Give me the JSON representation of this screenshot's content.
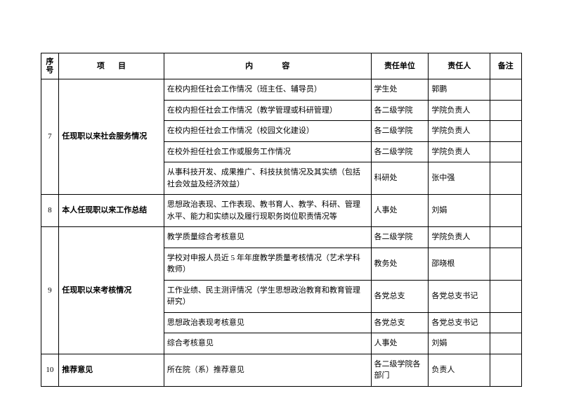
{
  "header": {
    "seq": "序号",
    "item_a": "项",
    "item_b": "目",
    "content_a": "内",
    "content_b": "容",
    "dept": "责任单位",
    "person": "责任人",
    "note": "备注"
  },
  "rows": [
    {
      "seq": "7",
      "item": "任现职以来社会服务情况",
      "rowspan": 5,
      "cells": [
        {
          "content": "在校内担任社会工作情况（班主任、辅导员）",
          "dept": "学生处",
          "person": "郭鹏"
        },
        {
          "content": "在校内担任社会工作情况（教学管理或科研管理）",
          "dept": "各二级学院",
          "person": "学院负责人"
        },
        {
          "content": "在校内担任社会工作情况（校园文化建设）",
          "dept": "各二级学院",
          "person": "学院负责人"
        },
        {
          "content": "在校外担任社会工作或服务工作情况",
          "dept": "各二级学院",
          "person": "学院负责人"
        },
        {
          "content": "从事科技开发、成果推广、科技扶贫情况及其实绩（包括社会效益及经济效益）",
          "dept": "科研处",
          "person": "张中强"
        }
      ]
    },
    {
      "seq": "8",
      "item": "本人任现职以来工作总结",
      "rowspan": 1,
      "cells": [
        {
          "content": "思想政治表现、工作表现、教书育人、教学、科研、管理水平、能力和实绩以及履行现职务岗位职责情况等",
          "dept": "人事处",
          "person": "刘娟"
        }
      ]
    },
    {
      "seq": "9",
      "item": "任现职以来考核情况",
      "rowspan": 5,
      "cells": [
        {
          "content": "教学质量综合考核意见",
          "dept": "各二级学院",
          "person": "学院负责人"
        },
        {
          "content": "学校对申报人员近 5 年年度教学质量考核情况（艺术学科教师）",
          "dept": "教务处",
          "person": "邵晓根"
        },
        {
          "content": "工作业绩、民主测评情况（学生思想政治教育和教育管理研究）",
          "dept": "各党总支",
          "person": "各党总支书记"
        },
        {
          "content": "思想政治表现考核意见",
          "dept": "各党总支",
          "person": "各党总支书记"
        },
        {
          "content": "综合考核意见",
          "dept": "人事处",
          "person": "刘娟"
        }
      ]
    },
    {
      "seq": "10",
      "item": "推荐意见",
      "rowspan": 1,
      "cells": [
        {
          "content": "所在院（系）推荐意见",
          "dept": "各二级学院各部门",
          "person": "负责人"
        }
      ]
    }
  ]
}
